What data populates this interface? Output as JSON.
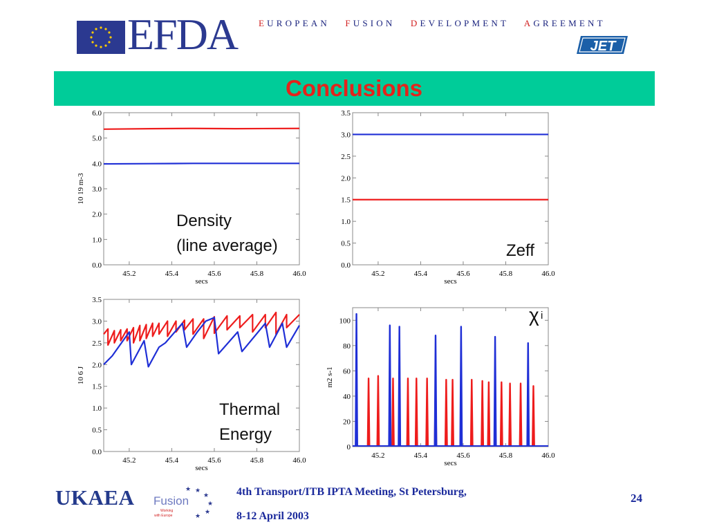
{
  "header": {
    "logo_text": "EFDA",
    "agreement_parts": [
      {
        "initial": "E",
        "rest": "UROPEAN"
      },
      {
        "initial": "F",
        "rest": "USION"
      },
      {
        "initial": "D",
        "rest": "EVELOPMENT"
      },
      {
        "initial": "A",
        "rest": "GREEMENT"
      }
    ],
    "jet_logo_text": "JET"
  },
  "slide": {
    "title": "Conclusions"
  },
  "colors": {
    "banner": "#00cc99",
    "title": "#e4231b",
    "series_red": "#ee1c1c",
    "series_blue": "#1f2fd6",
    "footer_text": "#1b2a9c"
  },
  "chart_data": [
    {
      "type": "line",
      "xlabel": "secs",
      "ylabel": "10 19 m-3",
      "annotation": [
        "Density",
        "(line average)"
      ],
      "xlim": [
        45.08,
        46.0
      ],
      "ylim": [
        0.0,
        6.0
      ],
      "xticks": [
        45.2,
        45.4,
        45.6,
        45.8,
        46.0
      ],
      "xtick_labels": [
        "45.2",
        "45.4",
        "45.6",
        "45.8",
        "46.0"
      ],
      "yticks": [
        0,
        1,
        2,
        3,
        4,
        5,
        6
      ],
      "ytick_labels": [
        "0.0",
        "1.0",
        "2.0",
        "3.0",
        "4.0",
        "5.0",
        "6.0"
      ],
      "series": [
        {
          "color": "#ee1c1c",
          "x": [
            45.08,
            45.3,
            45.5,
            45.7,
            46.0
          ],
          "y": [
            5.35,
            5.37,
            5.38,
            5.37,
            5.38
          ]
        },
        {
          "color": "#1f2fd6",
          "x": [
            45.08,
            45.3,
            45.5,
            45.7,
            46.0
          ],
          "y": [
            3.98,
            3.99,
            4.0,
            4.0,
            4.0
          ]
        }
      ]
    },
    {
      "type": "line",
      "xlabel": "secs",
      "ylabel": "",
      "annotation": [
        "Zeff"
      ],
      "xlim": [
        45.08,
        46.0
      ],
      "ylim": [
        0.0,
        3.5
      ],
      "xticks": [
        45.2,
        45.4,
        45.6,
        45.8,
        46.0
      ],
      "xtick_labels": [
        "45.2",
        "45.4",
        "45.6",
        "45.8",
        "46.0"
      ],
      "yticks": [
        0,
        0.5,
        1.0,
        1.5,
        2.0,
        2.5,
        3.0,
        3.5
      ],
      "ytick_labels": [
        "0.0",
        "0.5",
        "1.0",
        "1.5",
        "2.0",
        "2.5",
        "3.0",
        "3.5"
      ],
      "series": [
        {
          "color": "#1f2fd6",
          "x": [
            45.08,
            46.0
          ],
          "y": [
            3.0,
            3.0
          ]
        },
        {
          "color": "#ee1c1c",
          "x": [
            45.08,
            46.0
          ],
          "y": [
            1.5,
            1.5
          ]
        }
      ]
    },
    {
      "type": "line",
      "xlabel": "secs",
      "ylabel": "10 6 J",
      "annotation": [
        "Thermal",
        "Energy"
      ],
      "xlim": [
        45.08,
        46.0
      ],
      "ylim": [
        0.0,
        3.5
      ],
      "xticks": [
        45.2,
        45.4,
        45.6,
        45.8,
        46.0
      ],
      "xtick_labels": [
        "45.2",
        "45.4",
        "45.6",
        "45.8",
        "46.0"
      ],
      "yticks": [
        0,
        0.5,
        1.0,
        1.5,
        2.0,
        2.5,
        3.0,
        3.5
      ],
      "ytick_labels": [
        "0.0",
        "0.5",
        "1.0",
        "1.5",
        "2.0",
        "2.5",
        "3.0",
        "3.5"
      ],
      "series": [
        {
          "color": "#ee1c1c",
          "x": [
            45.08,
            45.1,
            45.1,
            45.13,
            45.13,
            45.16,
            45.16,
            45.19,
            45.19,
            45.22,
            45.22,
            45.25,
            45.25,
            45.28,
            45.28,
            45.31,
            45.31,
            45.34,
            45.34,
            45.38,
            45.38,
            45.42,
            45.42,
            45.46,
            45.46,
            45.5,
            45.5,
            45.55,
            45.55,
            45.6,
            45.6,
            45.66,
            45.66,
            45.72,
            45.72,
            45.78,
            45.78,
            45.84,
            45.84,
            45.89,
            45.89,
            45.94,
            45.94,
            46.0
          ],
          "y": [
            2.7,
            2.82,
            2.45,
            2.78,
            2.5,
            2.8,
            2.55,
            2.82,
            2.55,
            2.85,
            2.5,
            2.9,
            2.55,
            2.92,
            2.6,
            2.95,
            2.65,
            2.95,
            2.7,
            3.0,
            2.65,
            3.0,
            2.75,
            3.02,
            2.8,
            3.05,
            2.7,
            3.05,
            2.6,
            3.1,
            2.72,
            3.12,
            2.8,
            3.12,
            2.85,
            3.15,
            2.75,
            3.15,
            2.85,
            3.2,
            2.7,
            3.15,
            2.85,
            3.15
          ]
        },
        {
          "color": "#1f2fd6",
          "x": [
            45.08,
            45.1,
            45.12,
            45.2,
            45.21,
            45.27,
            45.29,
            45.34,
            45.37,
            45.45,
            45.47,
            45.52,
            45.56,
            45.6,
            45.62,
            45.71,
            45.73,
            45.84,
            45.86,
            45.92,
            45.94,
            46.0
          ],
          "y": [
            2.0,
            2.1,
            2.2,
            2.75,
            2.0,
            2.55,
            1.95,
            2.4,
            2.5,
            2.95,
            2.4,
            2.75,
            3.0,
            3.08,
            2.25,
            2.75,
            2.3,
            2.95,
            2.4,
            2.95,
            2.4,
            2.9
          ]
        }
      ]
    },
    {
      "type": "line",
      "xlabel": "secs",
      "ylabel": "m2 s-1",
      "annotation": [
        "χ",
        "i"
      ],
      "xlim": [
        45.08,
        46.0
      ],
      "ylim": [
        0,
        110
      ],
      "xticks": [
        45.2,
        45.4,
        45.6,
        45.8,
        46.0
      ],
      "xtick_labels": [
        "45.2",
        "45.4",
        "45.6",
        "45.8",
        "46.0"
      ],
      "yticks": [
        0,
        20,
        40,
        60,
        80,
        100
      ],
      "ytick_labels": [
        "0",
        "20",
        "40",
        "60",
        "80",
        "100"
      ],
      "spike_width": 0.008,
      "series": [
        {
          "color": "#ee1c1c",
          "spikes_x": [
            45.155,
            45.2,
            45.27,
            45.34,
            45.38,
            45.43,
            45.47,
            45.52,
            45.55,
            45.64,
            45.69,
            45.72,
            45.78,
            45.82,
            45.87,
            45.93
          ],
          "spikes_y": [
            54,
            56,
            54,
            54,
            54,
            54,
            53,
            53,
            53,
            53,
            52,
            51,
            51,
            50,
            50,
            48
          ]
        },
        {
          "color": "#1f2fd6",
          "spikes_x": [
            45.098,
            45.255,
            45.3,
            45.47,
            45.59,
            45.75,
            45.905
          ],
          "spikes_y": [
            105,
            96,
            95,
            88,
            95,
            87,
            82
          ]
        }
      ]
    }
  ],
  "footer": {
    "ukaea_text": "UKAEA",
    "fusion_logo_text": "Fusion",
    "fusion_logo_subtext_1": "Working",
    "fusion_logo_subtext_2": "with Europe",
    "meeting_line1": "4th Transport/ITB IPTA Meeting, St Petersburg,",
    "meeting_line2": "8-12 April 2003",
    "page_number": "24"
  }
}
